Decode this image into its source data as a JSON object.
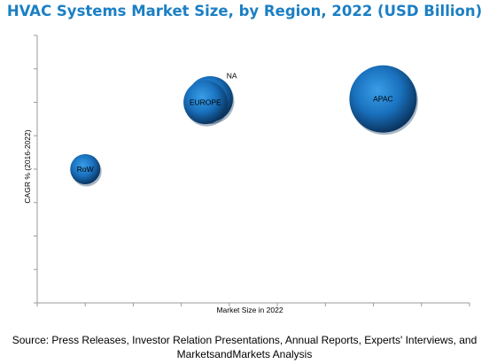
{
  "chart_data": {
    "type": "scatter",
    "title": "HVAC Systems Market Size, by Region, 2022 (USD Billion)",
    "xlabel": "Market Size in 2022",
    "ylabel": "CAGR % (2016-2022)",
    "grid": false,
    "points": [
      {
        "label": "RoW",
        "x": 1.0,
        "y": 4.0,
        "size": 1.0
      },
      {
        "label": "EUROPE",
        "x": 3.5,
        "y": 6.0,
        "size": 2.1
      },
      {
        "label": "NA",
        "x": 3.6,
        "y": 6.1,
        "size": 2.3
      },
      {
        "label": "APAC",
        "x": 7.2,
        "y": 6.1,
        "size": 5.0
      }
    ],
    "colors": {
      "bubble": "#1a7cc8",
      "bubble_dark": "#0c3d6e",
      "title": "#1b7fc4"
    }
  },
  "source": {
    "line1": "Source: Press Releases, Investor Relation Presentations, Annual Reports, Experts' Interviews, and",
    "line2": "MarketsandMarkets Analysis"
  }
}
